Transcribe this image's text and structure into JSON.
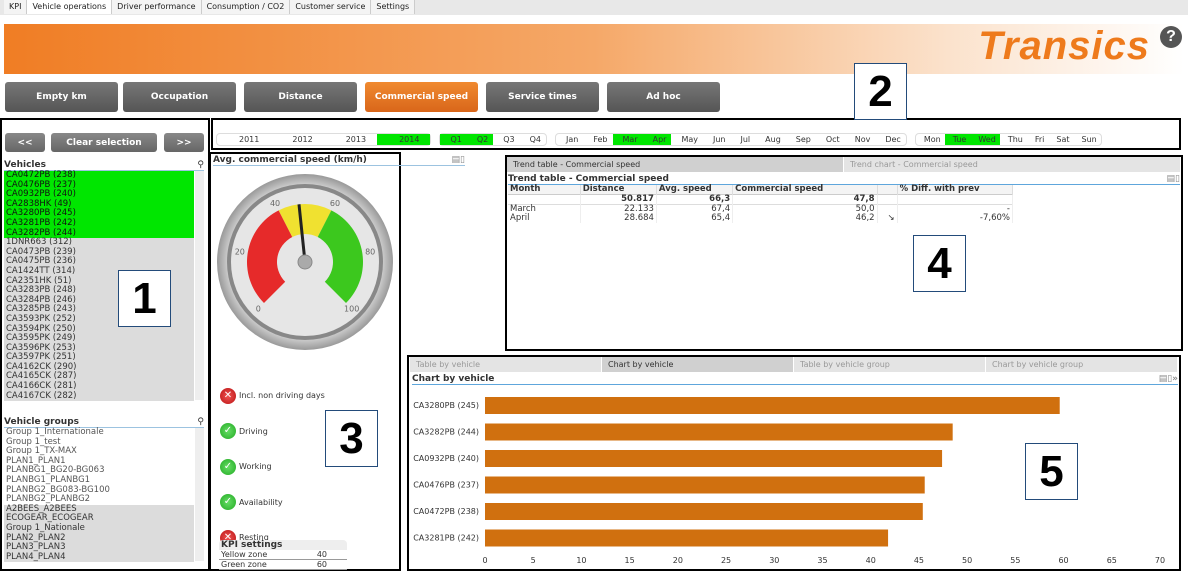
{
  "top_tabs": [
    {
      "label": "KPI"
    },
    {
      "label": "Vehicle operations",
      "active": true
    },
    {
      "label": "Driver performance"
    },
    {
      "label": "Consumption / CO2"
    },
    {
      "label": "Customer service"
    },
    {
      "label": "Settings"
    }
  ],
  "brand": {
    "logo": "Transics",
    "help": "?",
    "accent": "#f07d24"
  },
  "nav": [
    {
      "label": "Empty km"
    },
    {
      "label": "Occupation"
    },
    {
      "label": "Distance"
    },
    {
      "label": "Commercial speed",
      "active": true
    },
    {
      "label": "Service times"
    },
    {
      "label": "Ad hoc"
    }
  ],
  "callouts": [
    "1",
    "2",
    "3",
    "4",
    "5"
  ],
  "left": {
    "prev": "<<",
    "clear": "Clear selection",
    "next": ">>",
    "vehicles_title": "Vehicles",
    "vehicles": [
      {
        "label": "CA0472PB (238)",
        "state": "sel"
      },
      {
        "label": "CA0476PB (237)",
        "state": "sel"
      },
      {
        "label": "CA0932PB (240)",
        "state": "sel"
      },
      {
        "label": "CA2838HK (49)",
        "state": "sel"
      },
      {
        "label": "CA3280PB (245)",
        "state": "sel"
      },
      {
        "label": "CA3281PB (242)",
        "state": "sel"
      },
      {
        "label": "CA3282PB (244)",
        "state": "sel"
      },
      {
        "label": "1DNR663 (312)",
        "state": "alt"
      },
      {
        "label": "CA0473PB (239)",
        "state": "alt"
      },
      {
        "label": "CA0475PB (236)",
        "state": "alt"
      },
      {
        "label": "CA1424TT (314)",
        "state": "alt"
      },
      {
        "label": "CA2351HK (51)",
        "state": "alt"
      },
      {
        "label": "CA3283PB (248)",
        "state": "alt"
      },
      {
        "label": "CA3284PB (246)",
        "state": "alt"
      },
      {
        "label": "CA3285PB (243)",
        "state": "alt"
      },
      {
        "label": "CA3593PK (252)",
        "state": "alt"
      },
      {
        "label": "CA3594PK (250)",
        "state": "alt"
      },
      {
        "label": "CA3595PK (249)",
        "state": "alt"
      },
      {
        "label": "CA3596PK (253)",
        "state": "alt"
      },
      {
        "label": "CA3597PK (251)",
        "state": "alt"
      },
      {
        "label": "CA4162CK (290)",
        "state": "alt"
      },
      {
        "label": "CA4165CK (287)",
        "state": "alt"
      },
      {
        "label": "CA4166CK (281)",
        "state": "alt"
      },
      {
        "label": "CA4167CK (282)",
        "state": "alt"
      }
    ],
    "groups_title": "Vehicle groups",
    "groups": [
      {
        "label": "Group 1_Internationale",
        "state": "avail"
      },
      {
        "label": "Group 1_test",
        "state": "avail"
      },
      {
        "label": "Group 1_TX-MAX",
        "state": "avail"
      },
      {
        "label": "PLAN1_PLAN1",
        "state": "avail"
      },
      {
        "label": "PLANBG1_BG20-BG063",
        "state": "avail"
      },
      {
        "label": "PLANBG1_PLANBG1",
        "state": "avail"
      },
      {
        "label": "PLANBG2_BG083-BG100",
        "state": "avail"
      },
      {
        "label": "PLANBG2_PLANBG2",
        "state": "avail"
      },
      {
        "label": "A2BEES_A2BEES",
        "state": "alt"
      },
      {
        "label": "ECOGEAR_ECOGEAR",
        "state": "alt"
      },
      {
        "label": "Group 1_Nationale",
        "state": "alt"
      },
      {
        "label": "PLAN2_PLAN2",
        "state": "alt"
      },
      {
        "label": "PLAN3_PLAN3",
        "state": "alt"
      },
      {
        "label": "PLAN4_PLAN4",
        "state": "alt"
      }
    ]
  },
  "filters": {
    "years": [
      {
        "l": "2011"
      },
      {
        "l": "2012"
      },
      {
        "l": "2013"
      },
      {
        "l": "2014",
        "on": true
      }
    ],
    "quarters": [
      {
        "l": "Q1",
        "on": true
      },
      {
        "l": "Q2",
        "on": true
      },
      {
        "l": "Q3"
      },
      {
        "l": "Q4"
      }
    ],
    "months": [
      {
        "l": "Jan"
      },
      {
        "l": "Feb"
      },
      {
        "l": "Mar",
        "on": true
      },
      {
        "l": "Apr",
        "on": true
      },
      {
        "l": "May"
      },
      {
        "l": "Jun"
      },
      {
        "l": "Jul"
      },
      {
        "l": "Aug"
      },
      {
        "l": "Sep"
      },
      {
        "l": "Oct"
      },
      {
        "l": "Nov"
      },
      {
        "l": "Dec"
      }
    ],
    "days": [
      {
        "l": "Mon"
      },
      {
        "l": "Tue",
        "on": true
      },
      {
        "l": "Wed",
        "on": true
      },
      {
        "l": "Thu"
      },
      {
        "l": "Fri"
      },
      {
        "l": "Sat"
      },
      {
        "l": "Sun"
      }
    ]
  },
  "gauge": {
    "title": "Avg. commercial speed (km/h)",
    "value": 47.8,
    "min": 0,
    "max": 100,
    "ticks": [
      "0",
      "20",
      "40",
      "60",
      "80",
      "100"
    ],
    "yellow_from": 40,
    "green_from": 60
  },
  "kpi_toggles": [
    {
      "label": "Incl. non driving days",
      "on": false
    },
    {
      "label": "Driving",
      "on": true
    },
    {
      "label": "Working",
      "on": true
    },
    {
      "label": "Availability",
      "on": true
    },
    {
      "label": "Resting",
      "on": false
    }
  ],
  "kpi_settings": {
    "title": "KPI settings",
    "rows": [
      {
        "label": "Yellow zone",
        "value": "40"
      },
      {
        "label": "Green zone",
        "value": "60"
      }
    ]
  },
  "trend": {
    "tabs": [
      "Trend table - Commercial speed",
      "Trend chart - Commercial speed"
    ],
    "title": "Trend table - Commercial speed",
    "headers": [
      "Month",
      "Distance",
      "Avg. speed",
      "Commercial speed",
      "",
      "% Diff. with prev"
    ],
    "rows": [
      [
        "",
        "50.817",
        "66,3",
        "47,8",
        "",
        ""
      ],
      [
        "March",
        "22.133",
        "67,4",
        "50,0",
        "",
        "-"
      ],
      [
        "April",
        "28.684",
        "65,4",
        "46,2",
        "↘",
        "-7,60%"
      ]
    ]
  },
  "chart_panel": {
    "tabs": [
      "Table by vehicle",
      "Chart by vehicle",
      "Table by vehicle group",
      "Chart by vehicle group"
    ],
    "active_tab": 1,
    "title": "Chart by vehicle"
  },
  "chart_data": {
    "type": "bar",
    "orientation": "horizontal",
    "categories": [
      "CA3280PB (245)",
      "CA3282PB (244)",
      "CA0932PB (240)",
      "CA0476PB (237)",
      "CA0472PB (238)",
      "CA3281PB (242)"
    ],
    "values": [
      59.6,
      48.5,
      47.4,
      45.6,
      45.4,
      41.8
    ],
    "xlim": [
      0,
      70
    ],
    "xticks": [
      "0",
      "5",
      "10",
      "15",
      "20",
      "25",
      "30",
      "35",
      "40",
      "45",
      "50",
      "55",
      "60",
      "65",
      "70"
    ],
    "color": "#d0700f",
    "grid": false
  }
}
